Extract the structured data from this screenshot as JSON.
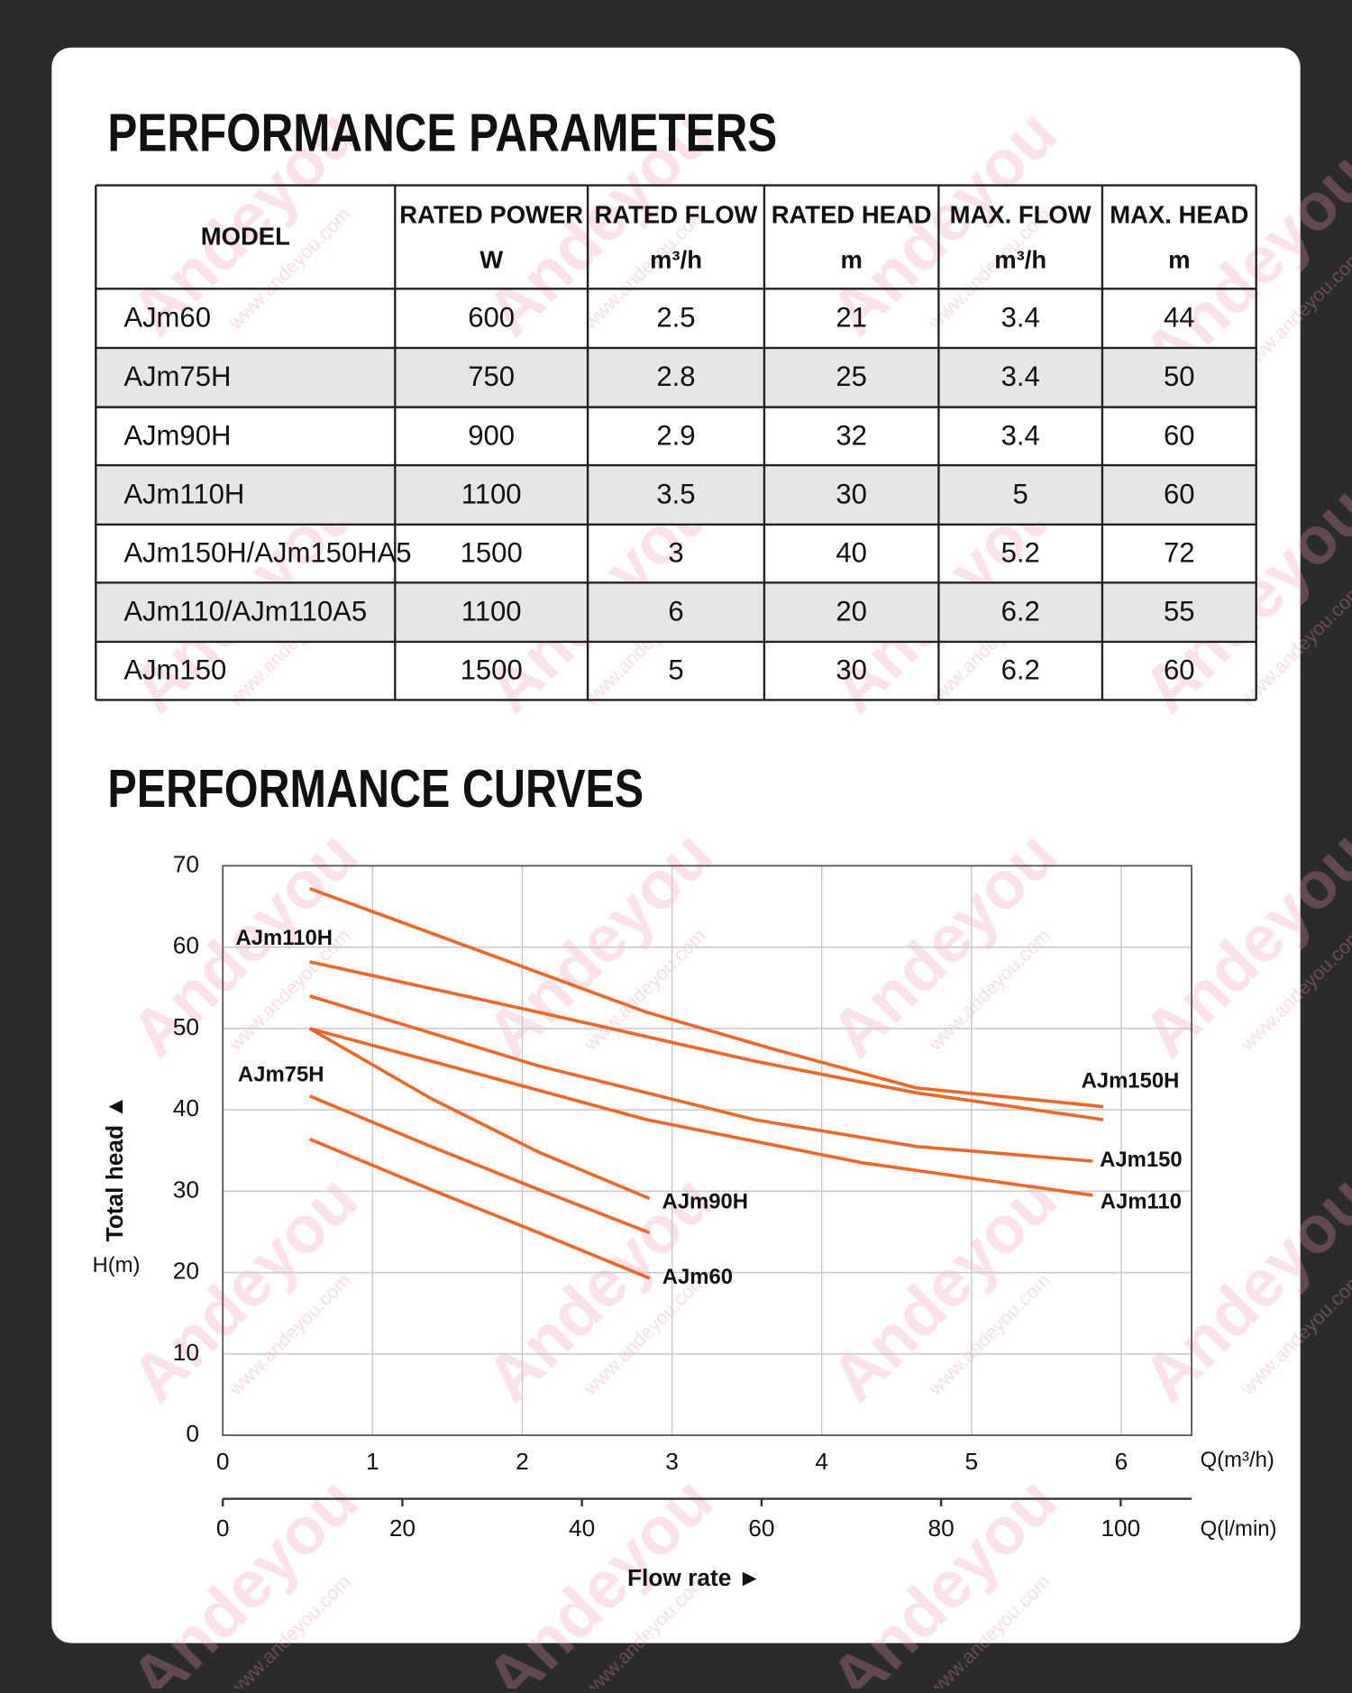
{
  "header": {
    "title": "PERFORMANCE PARAMETERS"
  },
  "table": {
    "headers": [
      {
        "name": "MODEL"
      },
      {
        "name": "RATED POWER",
        "unit": "W"
      },
      {
        "name": "RATED FLOW",
        "unit": "m³/h"
      },
      {
        "name": "RATED HEAD",
        "unit": "m"
      },
      {
        "name": "MAX. FLOW",
        "unit": "m³/h"
      },
      {
        "name": "MAX. HEAD",
        "unit": "m"
      }
    ],
    "rows": [
      [
        "AJm60",
        600,
        2.5,
        21,
        3.4,
        44
      ],
      [
        "AJm75H",
        750,
        2.8,
        25,
        3.4,
        50
      ],
      [
        "AJm90H",
        900,
        2.9,
        32,
        3.4,
        60
      ],
      [
        "AJm110H",
        1100,
        3.5,
        30,
        5,
        60
      ],
      [
        "AJm150H/AJm150HA5",
        1500,
        3,
        40,
        5.2,
        72
      ],
      [
        "AJm110/AJm110A5",
        1100,
        6,
        20,
        6.2,
        55
      ],
      [
        "AJm150",
        1500,
        5,
        30,
        6.2,
        60
      ]
    ]
  },
  "watermark": {
    "brand": "Andeyou",
    "url": "www.andeyou.com"
  },
  "chart_data": {
    "type": "line",
    "title": "PERFORMANCE CURVES",
    "y_label": "Total head ▲",
    "y_unit": "H(m)",
    "x_label": "Q(m³/h)",
    "x2_label": "Q(l/min)",
    "x_caption": "Flow rate ►",
    "xlim": [
      0,
      6.47
    ],
    "xticks": [
      0,
      1,
      2,
      3,
      4,
      5,
      6
    ],
    "x2lim": [
      0,
      107.9
    ],
    "x2ticks": [
      0,
      20,
      40,
      60,
      80,
      100
    ],
    "ylim": [
      0,
      70
    ],
    "yticks": [
      0,
      10,
      20,
      30,
      40,
      50,
      60,
      70
    ],
    "grid": true,
    "series": [
      {
        "name": "AJm150H",
        "color": "#f26522",
        "x": [
          0.58,
          1.75,
          2.83,
          3.69,
          4.63,
          5.88
        ],
        "values": [
          67.2,
          59.3,
          52.0,
          47.4,
          42.7,
          40.4
        ]
      },
      {
        "name": "AJm110H",
        "color": "#f26522",
        "x": [
          0.58,
          2.11,
          3.55,
          4.63,
          5.88
        ],
        "values": [
          58.2,
          52.0,
          46.0,
          42.1,
          38.8
        ]
      },
      {
        "name": "AJm150",
        "color": "#f26522",
        "x": [
          0.58,
          2.11,
          3.55,
          4.63,
          5.81
        ],
        "values": [
          54.0,
          45.4,
          38.8,
          35.5,
          33.7
        ]
      },
      {
        "name": "AJm110",
        "color": "#f26522",
        "x": [
          0.58,
          1.39,
          2.83,
          4.27,
          5.81
        ],
        "values": [
          50.0,
          46.0,
          38.8,
          33.5,
          29.5
        ]
      },
      {
        "name": "AJm90H",
        "color": "#f26522",
        "x": [
          0.58,
          1.39,
          2.11,
          2.85
        ],
        "values": [
          50.0,
          41.4,
          34.8,
          29.1
        ]
      },
      {
        "name": "AJm75H",
        "color": "#f26522",
        "x": [
          0.58,
          1.39,
          2.11,
          2.85
        ],
        "values": [
          41.7,
          35.5,
          30.2,
          24.9
        ]
      },
      {
        "name": "AJm60",
        "color": "#f26522",
        "x": [
          0.58,
          1.39,
          2.11,
          2.85
        ],
        "values": [
          36.4,
          30.2,
          24.9,
          19.3
        ]
      }
    ]
  }
}
